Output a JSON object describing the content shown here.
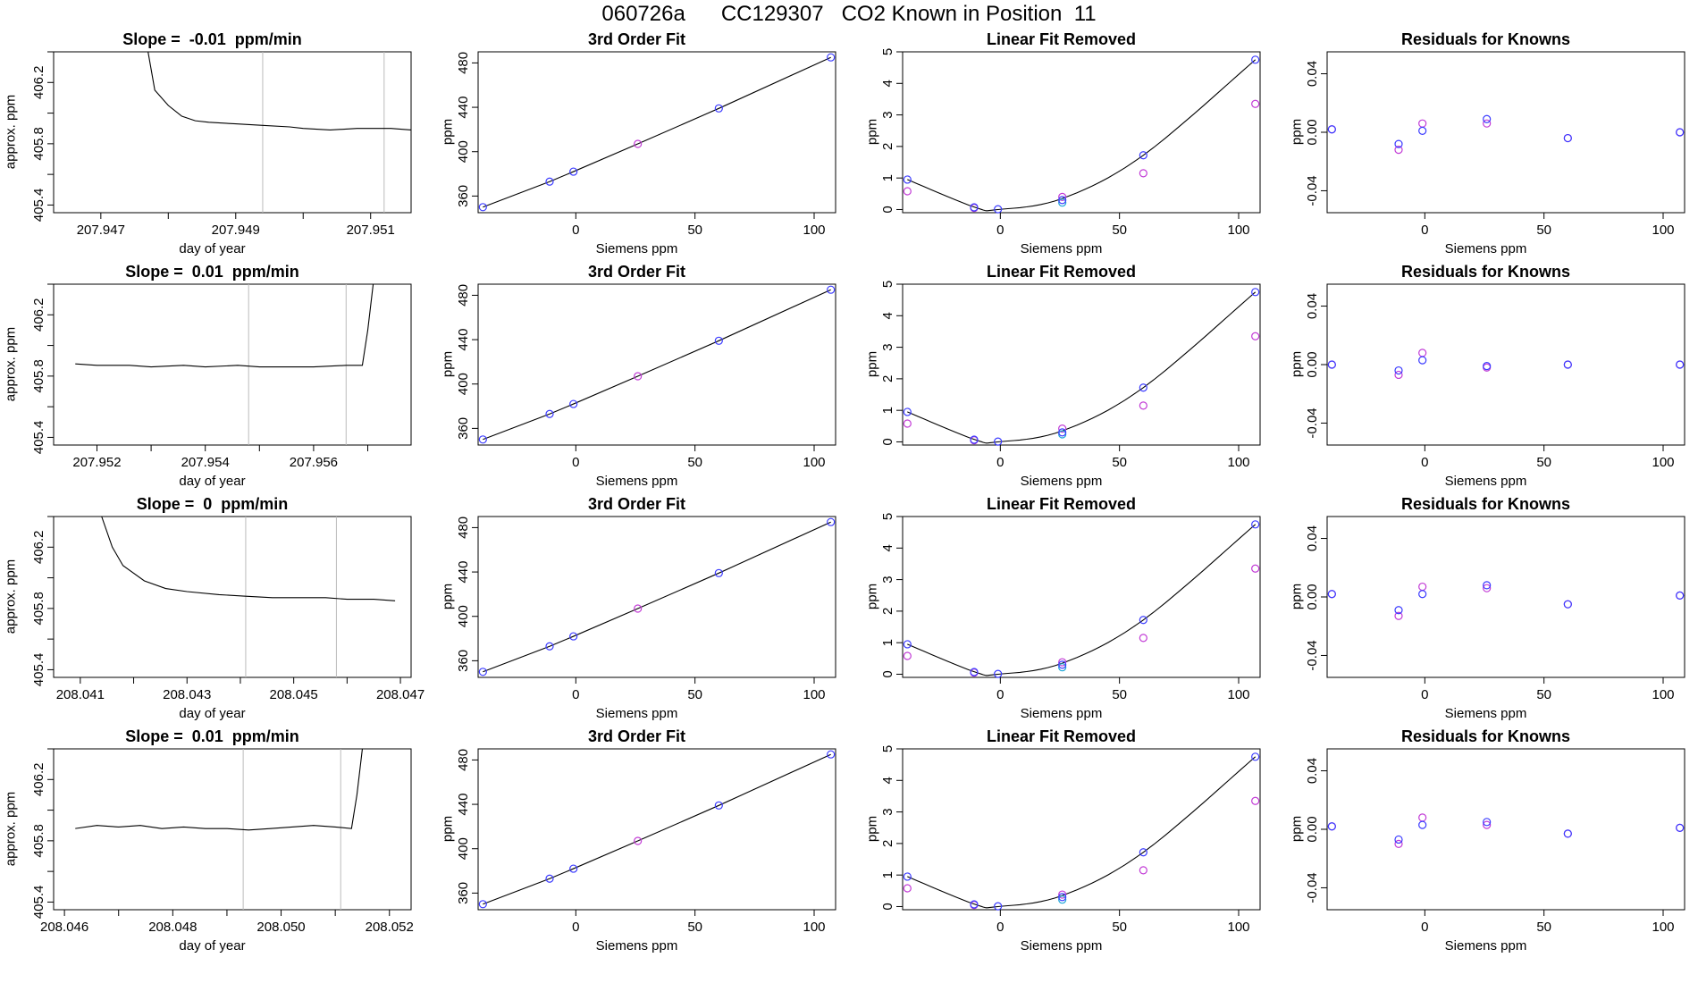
{
  "page_title": "060726a      CC129307   CO2 Known in Position  11",
  "colors": {
    "line": "#000000",
    "blue_points": "#3b3bff",
    "magenta_points": "#c23bd6",
    "cyan_points": "#21a8d8",
    "vline": "#bbbbbb"
  },
  "chart_data": [
    {
      "type": "line",
      "row": 0,
      "panel": "timeseries",
      "title": "Slope =  -0.01  ppm/min",
      "xlabel": "day of year",
      "ylabel": "approx. ppm",
      "xlim": [
        207.9463,
        207.9516
      ],
      "ylim": [
        405.35,
        406.4
      ],
      "xticks": [
        "207.947",
        "207.949",
        "207.951"
      ],
      "xtick_values": [
        207.947,
        207.949,
        207.951
      ],
      "yticks": [
        "405.4",
        "405.8",
        "406.2"
      ],
      "ytick_values": [
        405.4,
        405.8,
        406.2
      ],
      "vlines": [
        207.9494,
        207.9512
      ],
      "series": [
        {
          "x": [
            207.9477,
            207.9478,
            207.948,
            207.9482,
            207.9484,
            207.9486,
            207.949,
            207.9494,
            207.9498,
            207.95,
            207.9504,
            207.9508,
            207.951,
            207.9513,
            207.9516
          ],
          "y": [
            406.4,
            406.15,
            406.05,
            405.98,
            405.95,
            405.94,
            405.93,
            405.92,
            405.91,
            405.9,
            405.89,
            405.9,
            405.9,
            405.9,
            405.89
          ]
        }
      ]
    },
    {
      "type": "line",
      "row": 0,
      "panel": "fit",
      "title": "3rd Order Fit",
      "xlabel": "Siemens ppm",
      "ylabel": "ppm",
      "xlim": [
        -41,
        109
      ],
      "ylim": [
        345,
        490
      ],
      "xticks": [
        "0",
        "50",
        "100"
      ],
      "xtick_values": [
        0,
        50,
        100
      ],
      "yticks": [
        "360",
        "400",
        "440",
        "480"
      ],
      "ytick_values": [
        360,
        400,
        440,
        480
      ],
      "series": [
        {
          "name": "",
          "x": [
            -39,
            -11,
            -1,
            26,
            60,
            107
          ],
          "y": [
            350,
            373,
            382,
            407,
            439,
            485
          ]
        }
      ]
    },
    {
      "type": "scatter",
      "row": 0,
      "panel": "linear_removed",
      "title": "Linear Fit Removed",
      "xlabel": "Siemens ppm",
      "ylabel": "ppm",
      "xlim": [
        -41,
        109
      ],
      "ylim": [
        -0.1,
        5
      ],
      "xticks": [
        "0",
        "50",
        "100"
      ],
      "xtick_values": [
        0,
        50,
        100
      ],
      "yticks": [
        "0",
        "1",
        "2",
        "3",
        "4",
        "5"
      ],
      "ytick_values": [
        0,
        1,
        2,
        3,
        4,
        5
      ],
      "curve": {
        "x": [
          -39,
          -11,
          -1,
          26,
          60,
          107
        ],
        "y": [
          0.95,
          0.08,
          0.0,
          0.35,
          1.72,
          4.75
        ]
      },
      "points_blue": {
        "x": [
          -39,
          -11,
          -1,
          26,
          60,
          107
        ],
        "y": [
          0.95,
          0.07,
          0.01,
          0.3,
          1.72,
          4.75
        ]
      },
      "points_magenta": {
        "x": [
          -39,
          -11,
          26,
          60,
          107
        ],
        "y": [
          0.58,
          0.05,
          0.4,
          1.15,
          3.35
        ]
      },
      "points_cyan": {
        "x": [
          26
        ],
        "y": [
          0.22
        ]
      }
    },
    {
      "type": "scatter",
      "row": 0,
      "panel": "residuals",
      "title": "Residuals for Knowns",
      "xlabel": "Siemens ppm",
      "ylabel": "ppm",
      "xlim": [
        -41,
        109
      ],
      "ylim": [
        -0.055,
        0.055
      ],
      "xticks": [
        "0",
        "50",
        "100"
      ],
      "xtick_values": [
        0,
        50,
        100
      ],
      "yticks": [
        "-0.04",
        "0.00",
        "0.04"
      ],
      "ytick_values": [
        -0.04,
        0,
        0.04
      ],
      "points_blue": {
        "x": [
          -39,
          -11,
          -1,
          26,
          60,
          107
        ],
        "y": [
          0.002,
          -0.008,
          0.001,
          0.009,
          -0.004,
          0.0
        ]
      },
      "points_magenta": {
        "x": [
          -39,
          -11,
          -1,
          26,
          60,
          107
        ],
        "y": [
          0.002,
          -0.012,
          0.006,
          0.006,
          -0.004,
          0.0
        ]
      }
    },
    {
      "type": "line",
      "row": 1,
      "panel": "timeseries",
      "title": "Slope =  0.01  ppm/min",
      "xlabel": "day of year",
      "ylabel": "approx. ppm",
      "xlim": [
        207.9512,
        207.9578
      ],
      "ylim": [
        405.35,
        406.4
      ],
      "xticks": [
        "207.952",
        "207.954",
        "207.956"
      ],
      "xtick_values": [
        207.952,
        207.954,
        207.956
      ],
      "yticks": [
        "405.4",
        "405.8",
        "406.2"
      ],
      "ytick_values": [
        405.4,
        405.8,
        406.2
      ],
      "vlines": [
        207.9548,
        207.9566
      ],
      "series": [
        {
          "x": [
            207.9516,
            207.952,
            207.9526,
            207.953,
            207.9536,
            207.954,
            207.9546,
            207.955,
            207.9556,
            207.956,
            207.9566,
            207.9569,
            207.957,
            207.9571
          ],
          "y": [
            405.88,
            405.87,
            405.87,
            405.86,
            405.87,
            405.86,
            405.87,
            405.86,
            405.86,
            405.86,
            405.87,
            405.87,
            406.1,
            406.4
          ]
        }
      ]
    },
    {
      "type": "line",
      "row": 1,
      "panel": "fit",
      "title": "3rd Order Fit",
      "xlabel": "Siemens ppm",
      "ylabel": "ppm",
      "xlim": [
        -41,
        109
      ],
      "ylim": [
        345,
        490
      ],
      "xticks": [
        "0",
        "50",
        "100"
      ],
      "xtick_values": [
        0,
        50,
        100
      ],
      "yticks": [
        "360",
        "400",
        "440",
        "480"
      ],
      "ytick_values": [
        360,
        400,
        440,
        480
      ],
      "series": [
        {
          "name": "",
          "x": [
            -39,
            -11,
            -1,
            26,
            60,
            107
          ],
          "y": [
            350,
            373,
            382,
            407,
            439,
            485
          ]
        }
      ]
    },
    {
      "type": "scatter",
      "row": 1,
      "panel": "linear_removed",
      "title": "Linear Fit Removed",
      "xlabel": "Siemens ppm",
      "ylabel": "ppm",
      "xlim": [
        -41,
        109
      ],
      "ylim": [
        -0.1,
        5
      ],
      "xticks": [
        "0",
        "50",
        "100"
      ],
      "xtick_values": [
        0,
        50,
        100
      ],
      "yticks": [
        "0",
        "1",
        "2",
        "3",
        "4",
        "5"
      ],
      "ytick_values": [
        0,
        1,
        2,
        3,
        4,
        5
      ],
      "curve": {
        "x": [
          -39,
          -11,
          -1,
          26,
          60,
          107
        ],
        "y": [
          0.95,
          0.08,
          0.0,
          0.35,
          1.72,
          4.75
        ]
      },
      "points_blue": {
        "x": [
          -39,
          -11,
          -1,
          26,
          60,
          107
        ],
        "y": [
          0.95,
          0.07,
          0.01,
          0.3,
          1.72,
          4.75
        ]
      },
      "points_magenta": {
        "x": [
          -39,
          -11,
          26,
          60,
          107
        ],
        "y": [
          0.58,
          0.05,
          0.42,
          1.15,
          3.35
        ]
      },
      "points_cyan": {
        "x": [
          26
        ],
        "y": [
          0.24
        ]
      }
    },
    {
      "type": "scatter",
      "row": 1,
      "panel": "residuals",
      "title": "Residuals for Knowns",
      "xlabel": "Siemens ppm",
      "ylabel": "ppm",
      "xlim": [
        -41,
        109
      ],
      "ylim": [
        -0.055,
        0.055
      ],
      "xticks": [
        "0",
        "50",
        "100"
      ],
      "xtick_values": [
        0,
        50,
        100
      ],
      "yticks": [
        "-0.04",
        "0.00",
        "0.04"
      ],
      "ytick_values": [
        -0.04,
        0,
        0.04
      ],
      "points_blue": {
        "x": [
          -39,
          -11,
          -1,
          26,
          60,
          107
        ],
        "y": [
          0.0,
          -0.004,
          0.003,
          -0.001,
          0.0,
          0.0
        ]
      },
      "points_magenta": {
        "x": [
          -39,
          -11,
          -1,
          26,
          60,
          107
        ],
        "y": [
          0.0,
          -0.007,
          0.008,
          -0.002,
          0.0,
          0.0
        ]
      }
    },
    {
      "type": "line",
      "row": 2,
      "panel": "timeseries",
      "title": "Slope =  0  ppm/min",
      "xlabel": "day of year",
      "ylabel": "approx. ppm",
      "xlim": [
        208.0405,
        208.0472
      ],
      "ylim": [
        405.35,
        406.4
      ],
      "xticks": [
        "208.041",
        "208.043",
        "208.045",
        "208.047"
      ],
      "xtick_values": [
        208.041,
        208.043,
        208.045,
        208.047
      ],
      "yticks": [
        "405.4",
        "405.8",
        "406.2"
      ],
      "ytick_values": [
        405.4,
        405.8,
        406.2
      ],
      "vlines": [
        208.0441,
        208.0458
      ],
      "series": [
        {
          "x": [
            208.0414,
            208.0416,
            208.0418,
            208.0422,
            208.0426,
            208.043,
            208.0436,
            208.0441,
            208.0446,
            208.045,
            208.0456,
            208.046,
            208.0465,
            208.0469
          ],
          "y": [
            406.4,
            406.2,
            406.08,
            405.98,
            405.93,
            405.91,
            405.89,
            405.88,
            405.87,
            405.87,
            405.87,
            405.86,
            405.86,
            405.85
          ]
        }
      ]
    },
    {
      "type": "line",
      "row": 2,
      "panel": "fit",
      "title": "3rd Order Fit",
      "xlabel": "Siemens ppm",
      "ylabel": "ppm",
      "xlim": [
        -41,
        109
      ],
      "ylim": [
        345,
        490
      ],
      "xticks": [
        "0",
        "50",
        "100"
      ],
      "xtick_values": [
        0,
        50,
        100
      ],
      "yticks": [
        "360",
        "400",
        "440",
        "480"
      ],
      "ytick_values": [
        360,
        400,
        440,
        480
      ],
      "series": [
        {
          "name": "",
          "x": [
            -39,
            -11,
            -1,
            26,
            60,
            107
          ],
          "y": [
            350,
            373,
            382,
            407,
            439,
            485
          ]
        }
      ]
    },
    {
      "type": "scatter",
      "row": 2,
      "panel": "linear_removed",
      "title": "Linear Fit Removed",
      "xlabel": "Siemens ppm",
      "ylabel": "ppm",
      "xlim": [
        -41,
        109
      ],
      "ylim": [
        -0.1,
        5
      ],
      "xticks": [
        "0",
        "50",
        "100"
      ],
      "xtick_values": [
        0,
        50,
        100
      ],
      "yticks": [
        "0",
        "1",
        "2",
        "3",
        "4",
        "5"
      ],
      "ytick_values": [
        0,
        1,
        2,
        3,
        4,
        5
      ],
      "curve": {
        "x": [
          -39,
          -11,
          -1,
          26,
          60,
          107
        ],
        "y": [
          0.95,
          0.08,
          0.0,
          0.35,
          1.72,
          4.75
        ]
      },
      "points_blue": {
        "x": [
          -39,
          -11,
          -1,
          26,
          60,
          107
        ],
        "y": [
          0.95,
          0.07,
          0.01,
          0.3,
          1.72,
          4.75
        ]
      },
      "points_magenta": {
        "x": [
          -39,
          -11,
          26,
          60,
          107
        ],
        "y": [
          0.58,
          0.05,
          0.38,
          1.15,
          3.35
        ]
      },
      "points_cyan": {
        "x": [
          26
        ],
        "y": [
          0.22
        ]
      }
    },
    {
      "type": "scatter",
      "row": 2,
      "panel": "residuals",
      "title": "Residuals for Knowns",
      "xlabel": "Siemens ppm",
      "ylabel": "ppm",
      "xlim": [
        -41,
        109
      ],
      "ylim": [
        -0.055,
        0.055
      ],
      "xticks": [
        "0",
        "50",
        "100"
      ],
      "xtick_values": [
        0,
        50,
        100
      ],
      "yticks": [
        "-0.04",
        "0.00",
        "0.04"
      ],
      "ytick_values": [
        -0.04,
        0,
        0.04
      ],
      "points_blue": {
        "x": [
          -39,
          -11,
          -1,
          26,
          60,
          107
        ],
        "y": [
          0.002,
          -0.009,
          0.002,
          0.008,
          -0.005,
          0.001
        ]
      },
      "points_magenta": {
        "x": [
          -39,
          -11,
          -1,
          26,
          60,
          107
        ],
        "y": [
          0.002,
          -0.013,
          0.007,
          0.006,
          -0.005,
          0.001
        ]
      }
    },
    {
      "type": "line",
      "row": 3,
      "panel": "timeseries",
      "title": "Slope =  0.01  ppm/min",
      "xlabel": "day of year",
      "ylabel": "approx. ppm",
      "xlim": [
        208.0458,
        208.0524
      ],
      "ylim": [
        405.35,
        406.4
      ],
      "xticks": [
        "208.046",
        "208.048",
        "208.050",
        "208.052"
      ],
      "xtick_values": [
        208.046,
        208.048,
        208.05,
        208.052
      ],
      "yticks": [
        "405.4",
        "405.8",
        "406.2"
      ],
      "ytick_values": [
        405.4,
        405.8,
        406.2
      ],
      "vlines": [
        208.0493,
        208.0511
      ],
      "series": [
        {
          "x": [
            208.0462,
            208.0466,
            208.047,
            208.0474,
            208.0478,
            208.0482,
            208.0486,
            208.049,
            208.0494,
            208.0498,
            208.0502,
            208.0506,
            208.051,
            208.0513,
            208.0514,
            208.0515
          ],
          "y": [
            405.88,
            405.9,
            405.89,
            405.9,
            405.88,
            405.89,
            405.88,
            405.88,
            405.87,
            405.88,
            405.89,
            405.9,
            405.89,
            405.88,
            406.1,
            406.4
          ]
        }
      ]
    },
    {
      "type": "line",
      "row": 3,
      "panel": "fit",
      "title": "3rd Order Fit",
      "xlabel": "Siemens ppm",
      "ylabel": "ppm",
      "xlim": [
        -41,
        109
      ],
      "ylim": [
        345,
        490
      ],
      "xticks": [
        "0",
        "50",
        "100"
      ],
      "xtick_values": [
        0,
        50,
        100
      ],
      "yticks": [
        "360",
        "400",
        "440",
        "480"
      ],
      "ytick_values": [
        360,
        400,
        440,
        480
      ],
      "series": [
        {
          "name": "",
          "x": [
            -39,
            -11,
            -1,
            26,
            60,
            107
          ],
          "y": [
            350,
            373,
            382,
            407,
            439,
            485
          ]
        }
      ]
    },
    {
      "type": "scatter",
      "row": 3,
      "panel": "linear_removed",
      "title": "Linear Fit Removed",
      "xlabel": "Siemens ppm",
      "ylabel": "ppm",
      "xlim": [
        -41,
        109
      ],
      "ylim": [
        -0.1,
        5
      ],
      "xticks": [
        "0",
        "50",
        "100"
      ],
      "xtick_values": [
        0,
        50,
        100
      ],
      "yticks": [
        "0",
        "1",
        "2",
        "3",
        "4",
        "5"
      ],
      "ytick_values": [
        0,
        1,
        2,
        3,
        4,
        5
      ],
      "curve": {
        "x": [
          -39,
          -11,
          -1,
          26,
          60,
          107
        ],
        "y": [
          0.95,
          0.08,
          0.0,
          0.35,
          1.72,
          4.75
        ]
      },
      "points_blue": {
        "x": [
          -39,
          -11,
          -1,
          26,
          60,
          107
        ],
        "y": [
          0.95,
          0.07,
          0.01,
          0.3,
          1.72,
          4.75
        ]
      },
      "points_magenta": {
        "x": [
          -39,
          -11,
          26,
          60,
          107
        ],
        "y": [
          0.58,
          0.05,
          0.38,
          1.15,
          3.35
        ]
      },
      "points_cyan": {
        "x": [
          26
        ],
        "y": [
          0.22
        ]
      }
    },
    {
      "type": "scatter",
      "row": 3,
      "panel": "residuals",
      "title": "Residuals for Knowns",
      "xlabel": "Siemens ppm",
      "ylabel": "ppm",
      "xlim": [
        -41,
        109
      ],
      "ylim": [
        -0.055,
        0.055
      ],
      "xticks": [
        "0",
        "50",
        "100"
      ],
      "xtick_values": [
        0,
        50,
        100
      ],
      "yticks": [
        "-0.04",
        "0.00",
        "0.04"
      ],
      "ytick_values": [
        -0.04,
        0,
        0.04
      ],
      "points_blue": {
        "x": [
          -39,
          -11,
          -1,
          26,
          60,
          107
        ],
        "y": [
          0.002,
          -0.007,
          0.003,
          0.005,
          -0.003,
          0.001
        ]
      },
      "points_magenta": {
        "x": [
          -39,
          -11,
          -1,
          26,
          60,
          107
        ],
        "y": [
          0.002,
          -0.01,
          0.008,
          0.003,
          -0.003,
          0.001
        ]
      }
    }
  ]
}
